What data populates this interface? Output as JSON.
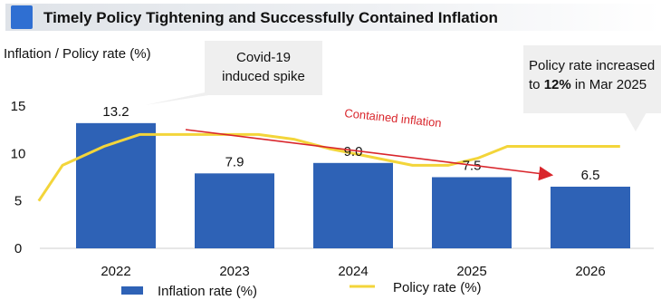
{
  "title": "Timely Policy Tightening and Successfully Contained Inflation",
  "colors": {
    "accent": "#2f6fd2",
    "bar": "#2e62b6",
    "policy_line": "#f3d53a",
    "arrow": "#d9262c",
    "callout_bg": "#efefef"
  },
  "callouts": {
    "covid": "Covid-19\ninduced spike",
    "policy_prefix": "Policy rate increased",
    "policy_line2_pre": "to ",
    "policy_value": "12%",
    "policy_line2_post": " in Mar 2025"
  },
  "annotation": "Contained inflation",
  "chart_data": {
    "type": "bar",
    "ylabel": "Inflation / Policy rate (%)",
    "xlabel": "",
    "ylim": [
      0,
      15
    ],
    "yticks": [
      0,
      5,
      10,
      15
    ],
    "grid": false,
    "legend_position": "bottom",
    "categories": [
      "2022",
      "2023",
      "2024",
      "2025",
      "2026"
    ],
    "series": [
      {
        "name": "Inflation rate (%)",
        "type": "bar",
        "values": [
          13.2,
          7.9,
          9.0,
          7.5,
          6.5
        ],
        "labels": [
          "13.2",
          "7.9",
          "9.0",
          "7.5",
          "6.5"
        ]
      },
      {
        "name": "Policy rate (%)",
        "type": "line",
        "x": [
          -0.65,
          -0.45,
          -0.1,
          0.2,
          0.5,
          0.85,
          1.2,
          1.5,
          1.8,
          2.1,
          2.5,
          2.8,
          3.05,
          3.3,
          4.0,
          4.25
        ],
        "values": [
          5.0,
          8.75,
          10.75,
          12.0,
          12.0,
          12.0,
          12.0,
          11.5,
          10.5,
          9.75,
          8.75,
          8.75,
          9.5,
          10.75,
          10.75,
          10.75
        ]
      }
    ]
  }
}
